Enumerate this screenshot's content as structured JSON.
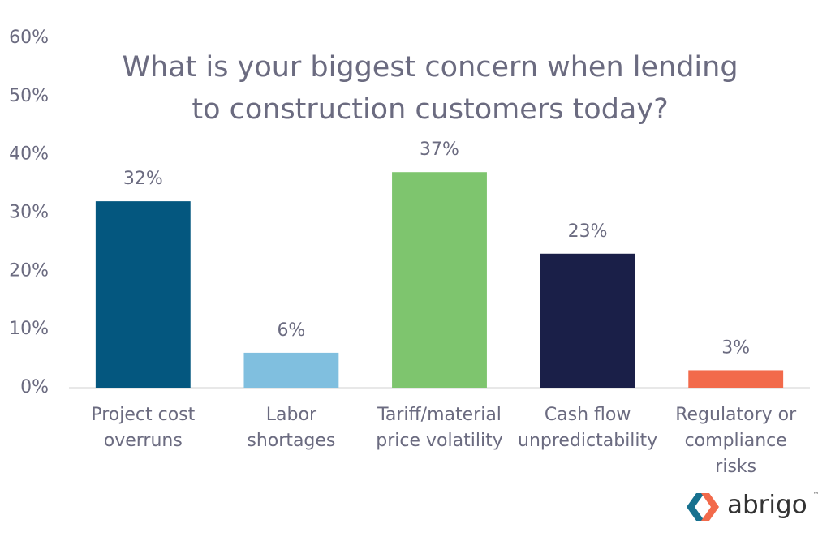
{
  "chart_data": {
    "type": "bar",
    "title": [
      "What is your biggest concern when lending",
      "to construction customers today?"
    ],
    "categories": [
      [
        "Project cost",
        "overruns"
      ],
      [
        "Labor",
        "shortages"
      ],
      [
        "Tariff/material",
        "price volatility"
      ],
      [
        "Cash flow",
        "unpredictability"
      ],
      [
        "Regulatory or",
        "compliance",
        "risks"
      ]
    ],
    "values": [
      32,
      6,
      37,
      23,
      3
    ],
    "value_labels": [
      "32%",
      "6%",
      "37%",
      "23%",
      "3%"
    ],
    "colors": [
      "#04577f",
      "#80bfdf",
      "#7ec56e",
      "#1a1f48",
      "#f26a4b"
    ],
    "ylim": [
      0,
      60
    ],
    "yticks": [
      {
        "value": 0,
        "label": "0%"
      },
      {
        "value": 10,
        "label": "10%"
      },
      {
        "value": 20,
        "label": "20%"
      },
      {
        "value": 30,
        "label": "30%"
      },
      {
        "value": 40,
        "label": "40%"
      },
      {
        "value": 50,
        "label": "50%"
      },
      {
        "value": 60,
        "label": "60%"
      }
    ],
    "grid": false
  },
  "logo": {
    "text": "abrigo",
    "mark": "™"
  }
}
